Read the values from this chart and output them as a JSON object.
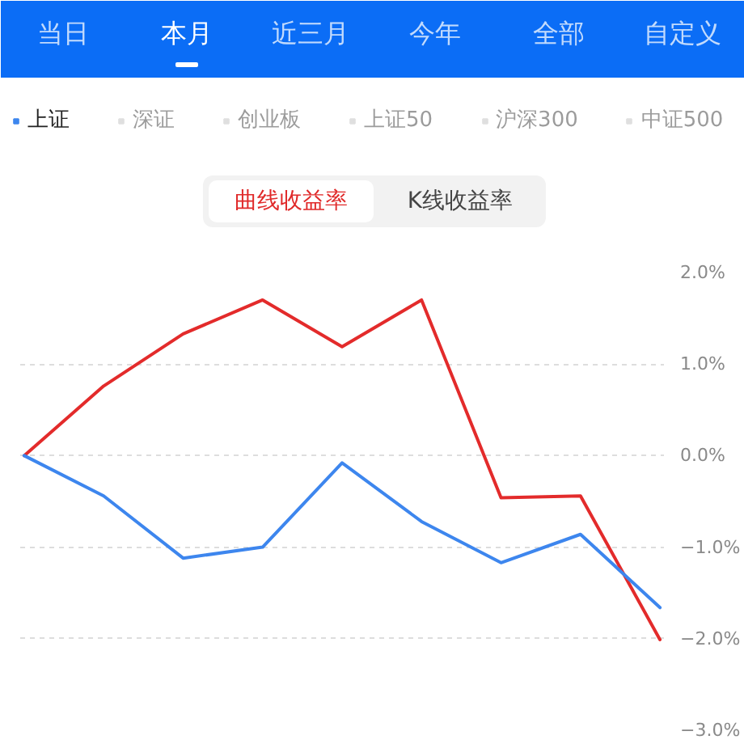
{
  "chart_data": {
    "type": "line",
    "annotations": [
      "当日",
      "本月",
      "近三月",
      "今年",
      "全部",
      "自定义",
      "曲线收益率",
      "K线收益率"
    ],
    "categories": [
      null,
      null,
      null,
      null,
      null,
      null,
      null,
      null,
      null
    ],
    "ylim": [
      -3.0,
      2.0
    ],
    "yticks": [
      {
        "value": 2,
        "label": "2.0%"
      },
      {
        "value": 1,
        "label": "1.0%"
      },
      {
        "value": 0,
        "label": "0.0%"
      },
      {
        "value": -1,
        "label": "−1.0%"
      },
      {
        "value": -2,
        "label": "−2.0%"
      },
      {
        "value": -3,
        "label": "−3.0%"
      }
    ],
    "series": [
      {
        "color": "#e32b2b",
        "values": [
          0,
          0.76,
          1.33,
          1.7,
          1.19,
          1.7,
          -0.46,
          -0.44,
          -2.01
        ]
      },
      {
        "name": "上证",
        "color": "#3d86ee",
        "values": [
          0,
          -0.44,
          -1.12,
          -1.0,
          -0.08,
          -0.72,
          -1.17,
          -0.86,
          -1.66
        ]
      },
      {
        "name": "深证",
        "color": "#b8b8b8",
        "values": [
          null,
          null,
          null,
          null,
          null,
          null,
          null,
          null,
          null
        ]
      },
      {
        "name": "创业板",
        "color": "#b8b8b8",
        "values": [
          null,
          null,
          null,
          null,
          null,
          null,
          null,
          null,
          null
        ]
      },
      {
        "name": "上证50",
        "color": "#b8b8b8",
        "values": [
          null,
          null,
          null,
          null,
          null,
          null,
          null,
          null,
          null
        ]
      },
      {
        "name": "沪深300",
        "color": "#b8b8b8",
        "values": [
          null,
          null,
          null,
          null,
          null,
          null,
          null,
          null,
          null
        ]
      },
      {
        "name": "中证500",
        "color": "#b8b8b8",
        "values": [
          null,
          null,
          null,
          null,
          null,
          null,
          null,
          null,
          null
        ]
      }
    ],
    "grid": "y",
    "legend": "top",
    "tick_labels": "y",
    "marker": "none",
    "line_style": "solid"
  }
}
